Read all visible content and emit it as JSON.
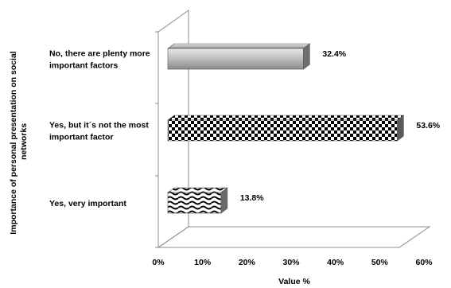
{
  "chart_data": {
    "type": "bar",
    "orientation": "horizontal",
    "style": "3d",
    "xlabel": "Value %",
    "ylabel": "Importance of personal presentation on social networks",
    "xlim": [
      0,
      60
    ],
    "xticks": [
      "0%",
      "10%",
      "20%",
      "30%",
      "40%",
      "50%",
      "60%"
    ],
    "grid": false,
    "legend": "none",
    "categories": [
      {
        "lines": [
          "No, there are plenty more",
          "important factors"
        ],
        "value": 32.4,
        "label": "32.4%",
        "pattern": "gradient-gray"
      },
      {
        "lines": [
          "Yes, but it´s not the most",
          "important factor"
        ],
        "value": 53.6,
        "label": "53.6%",
        "pattern": "checker"
      },
      {
        "lines": [
          "Yes, very important"
        ],
        "value": 13.8,
        "label": "13.8%",
        "pattern": "wave"
      }
    ]
  }
}
